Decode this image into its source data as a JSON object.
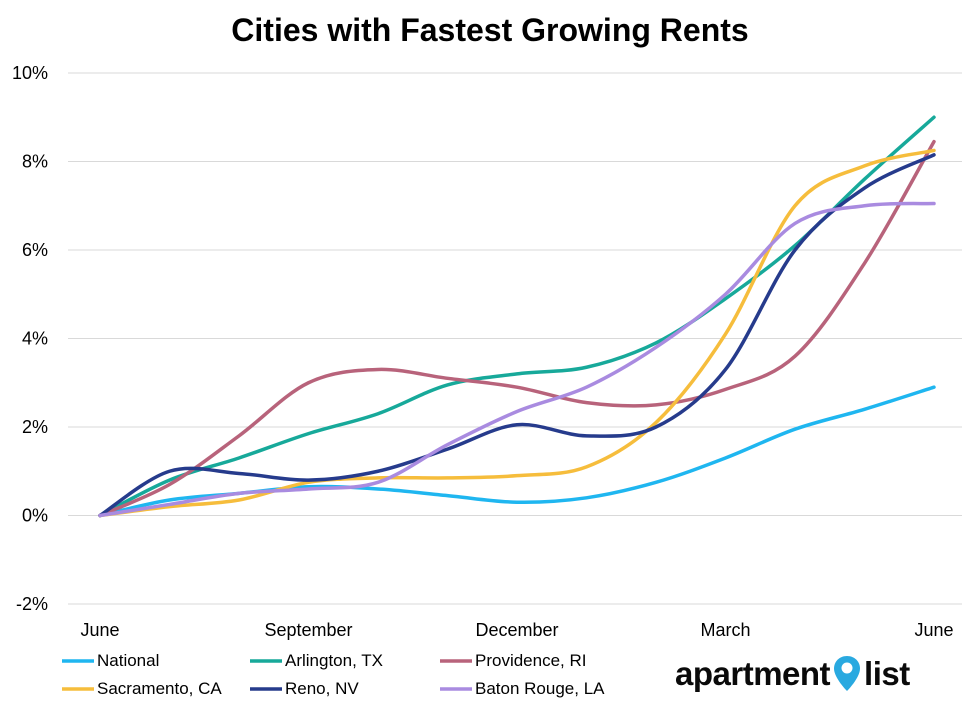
{
  "chart_data": {
    "type": "line",
    "title": "Cities with Fastest Growing Rents",
    "x_ticks": [
      "June",
      "September",
      "December",
      "March",
      "June"
    ],
    "y_ticks": [
      "10%",
      "8%",
      "6%",
      "4%",
      "2%",
      "0%",
      "-2%"
    ],
    "ylim": [
      -2,
      10
    ],
    "y_unit": "%",
    "grid": "horizontal",
    "legend_position": "bottom",
    "x_months": [
      0,
      1,
      2,
      3,
      4,
      5,
      6,
      7,
      8,
      9,
      10,
      11,
      12
    ],
    "series": [
      {
        "name": "National",
        "color": "#1fb6f0",
        "values": [
          0.0,
          0.35,
          0.5,
          0.65,
          0.6,
          0.45,
          0.3,
          0.4,
          0.75,
          1.3,
          1.95,
          2.4,
          2.9
        ]
      },
      {
        "name": "Arlington, TX",
        "color": "#17a99a",
        "values": [
          0.0,
          0.8,
          1.3,
          1.85,
          2.3,
          2.95,
          3.2,
          3.35,
          3.9,
          4.9,
          6.1,
          7.6,
          9.0
        ]
      },
      {
        "name": "Providence, RI",
        "color": "#b8637b",
        "values": [
          0.0,
          0.7,
          1.8,
          3.0,
          3.3,
          3.1,
          2.9,
          2.55,
          2.5,
          2.85,
          3.6,
          5.7,
          8.45
        ]
      },
      {
        "name": "Sacramento, CA",
        "color": "#f6bd3c",
        "values": [
          0.0,
          0.2,
          0.35,
          0.75,
          0.85,
          0.85,
          0.9,
          1.1,
          2.1,
          4.1,
          7.0,
          7.9,
          8.25
        ]
      },
      {
        "name": "Reno, NV",
        "color": "#263b8c",
        "values": [
          0.0,
          1.0,
          0.95,
          0.8,
          1.0,
          1.5,
          2.05,
          1.8,
          2.0,
          3.3,
          6.0,
          7.4,
          8.15
        ]
      },
      {
        "name": "Baton Rouge, LA",
        "color": "#a98be0",
        "values": [
          0.0,
          0.25,
          0.5,
          0.6,
          0.75,
          1.6,
          2.35,
          2.9,
          3.8,
          5.0,
          6.6,
          7.0,
          7.05
        ]
      }
    ]
  },
  "logo": {
    "left": "apartment",
    "right": "list",
    "pin_color": "#29a9e0"
  }
}
